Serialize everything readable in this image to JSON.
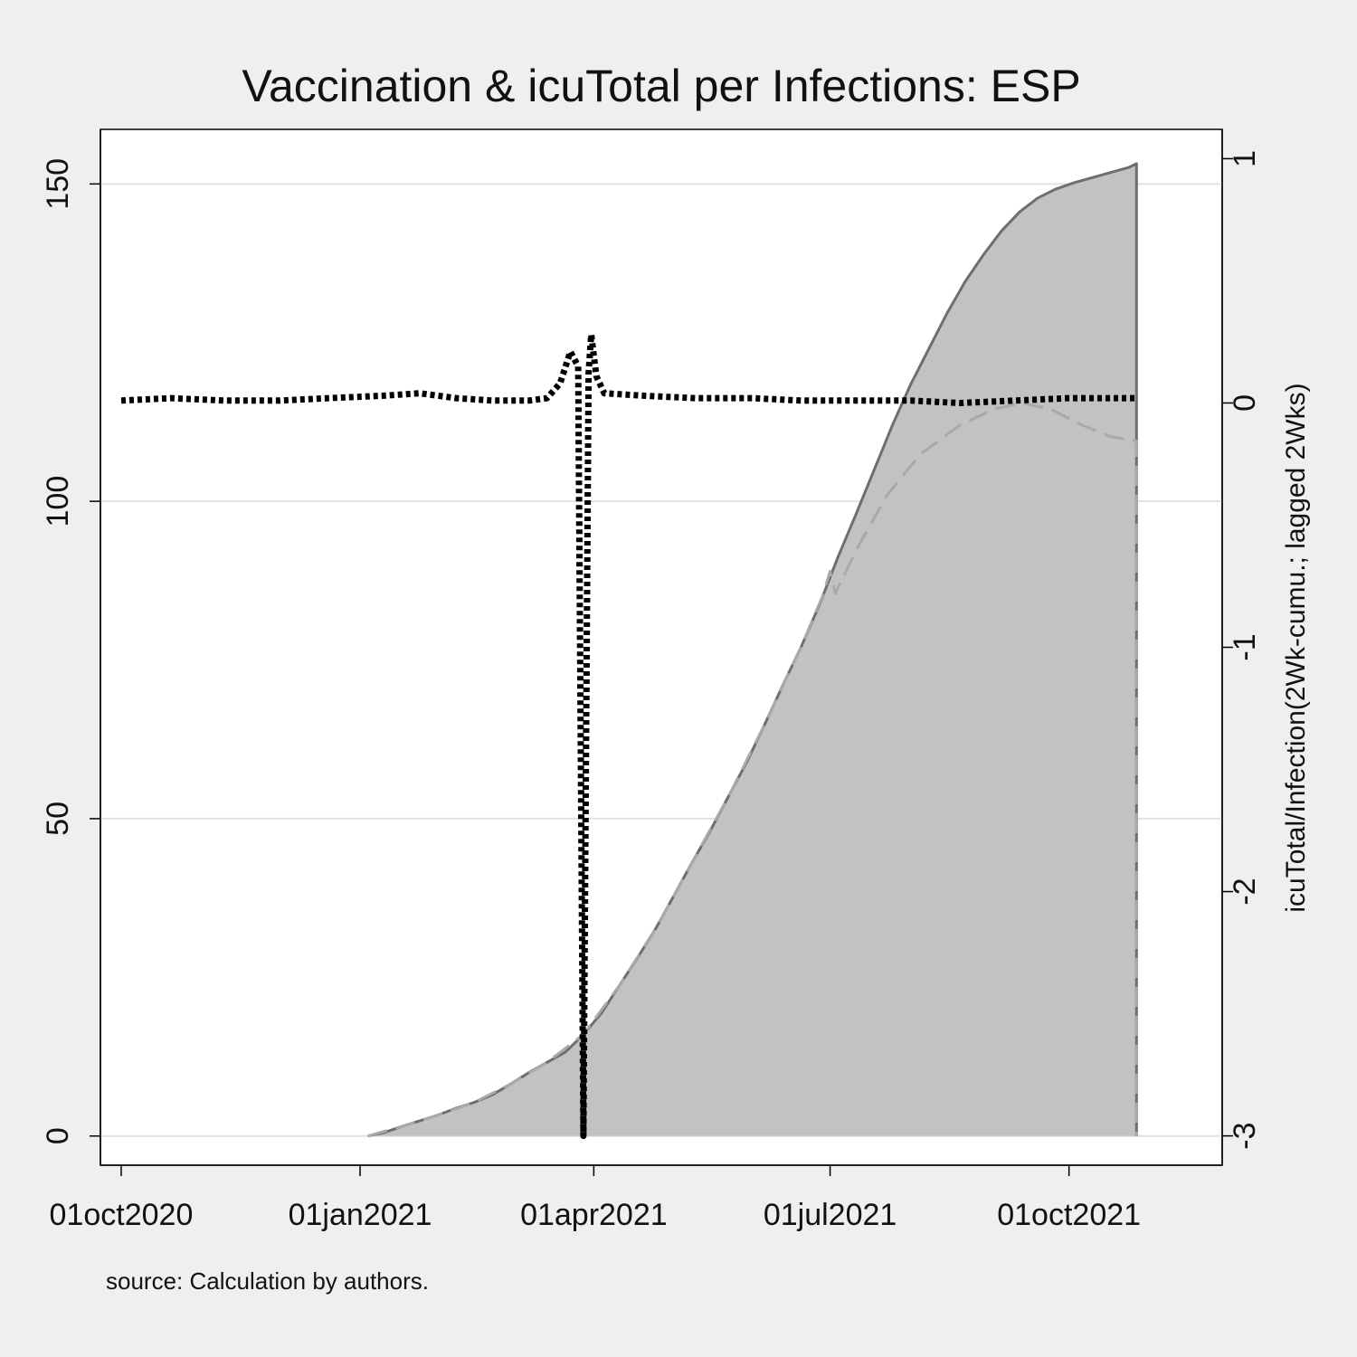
{
  "chart_data": {
    "type": "area",
    "title": "Vaccination & icuTotal per Infections: ESP",
    "note": "source: Calculation by authors.",
    "xlabel": "",
    "ylabel_left": "",
    "ylabel_right": "icuTotal/Infection(2Wk-cumu.; lagged 2Wks)",
    "x_ticks": [
      "01oct2020",
      "01jan2021",
      "01apr2021",
      "01jul2021",
      "01oct2021"
    ],
    "xlim": [
      "2020-09-23",
      "2021-11-29"
    ],
    "y_left_ticks": [
      0,
      50,
      100,
      150
    ],
    "ylim_left": [
      -4.6,
      158.6
    ],
    "y_right_ticks": [
      -3,
      -2,
      -1,
      0,
      1
    ],
    "ylim_right": [
      -3.12,
      1.12
    ],
    "grid": "horizontal, left axis",
    "legend": "none",
    "colors": {
      "area_fill": "#c2c2c2",
      "area_line": "#6e6e6e",
      "dashed": "#a9a9a9",
      "dotted": "#000000",
      "plot_bg": "#ffffff",
      "page_bg": "#efefef"
    },
    "series": [
      {
        "axis": "left",
        "style": "area",
        "points": [
          [
            "2021-01-04",
            0
          ],
          [
            "2021-01-10",
            0.5
          ],
          [
            "2021-01-17",
            1.5
          ],
          [
            "2021-01-24",
            2.4
          ],
          [
            "2021-01-31",
            3.3
          ],
          [
            "2021-02-07",
            4.4
          ],
          [
            "2021-02-14",
            5.3
          ],
          [
            "2021-02-21",
            6.5
          ],
          [
            "2021-02-28",
            8.2
          ],
          [
            "2021-03-07",
            10.0
          ],
          [
            "2021-03-14",
            11.6
          ],
          [
            "2021-03-21",
            13.2
          ],
          [
            "2021-03-28",
            16.0
          ],
          [
            "2021-04-04",
            19.4
          ],
          [
            "2021-04-11",
            23.8
          ],
          [
            "2021-04-18",
            28.2
          ],
          [
            "2021-04-25",
            32.8
          ],
          [
            "2021-05-02",
            38.0
          ],
          [
            "2021-05-09",
            43.2
          ],
          [
            "2021-05-16",
            48.2
          ],
          [
            "2021-05-23",
            53.6
          ],
          [
            "2021-05-30",
            59.0
          ],
          [
            "2021-06-06",
            65.0
          ],
          [
            "2021-06-13",
            71.2
          ],
          [
            "2021-06-20",
            77.2
          ],
          [
            "2021-06-27",
            83.8
          ],
          [
            "2021-07-04",
            91.2
          ],
          [
            "2021-07-11",
            98.0
          ],
          [
            "2021-07-18",
            105.0
          ],
          [
            "2021-07-25",
            112.0
          ],
          [
            "2021-08-01",
            118.4
          ],
          [
            "2021-08-08",
            124.0
          ],
          [
            "2021-08-15",
            129.6
          ],
          [
            "2021-08-22",
            134.6
          ],
          [
            "2021-08-29",
            138.8
          ],
          [
            "2021-09-05",
            142.6
          ],
          [
            "2021-09-12",
            145.6
          ],
          [
            "2021-09-19",
            147.8
          ],
          [
            "2021-09-26",
            149.2
          ],
          [
            "2021-10-03",
            150.2
          ],
          [
            "2021-10-10",
            151.0
          ],
          [
            "2021-10-17",
            151.8
          ],
          [
            "2021-10-24",
            152.6
          ],
          [
            "2021-10-27",
            153.2
          ],
          [
            "2021-10-27",
            0
          ]
        ]
      },
      {
        "axis": "left",
        "style": "dashed",
        "points": [
          [
            "2021-01-04",
            0
          ],
          [
            "2021-01-17",
            1.5
          ],
          [
            "2021-01-31",
            3.3
          ],
          [
            "2021-02-14",
            5.3
          ],
          [
            "2021-02-28",
            8.2
          ],
          [
            "2021-03-14",
            11.6
          ],
          [
            "2021-03-28",
            16.0
          ],
          [
            "2021-04-11",
            23.8
          ],
          [
            "2021-04-25",
            32.8
          ],
          [
            "2021-05-09",
            43.2
          ],
          [
            "2021-05-23",
            53.6
          ],
          [
            "2021-06-06",
            65.0
          ],
          [
            "2021-06-20",
            77.2
          ],
          [
            "2021-06-28",
            85.0
          ],
          [
            "2021-07-01",
            89.0
          ],
          [
            "2021-07-03",
            85.5
          ],
          [
            "2021-07-12",
            93.0
          ],
          [
            "2021-07-23",
            101.0
          ],
          [
            "2021-08-05",
            107.5
          ],
          [
            "2021-08-20",
            112.0
          ],
          [
            "2021-09-02",
            114.5
          ],
          [
            "2021-09-13",
            115.5
          ],
          [
            "2021-09-24",
            114.5
          ],
          [
            "2021-10-06",
            112.0
          ],
          [
            "2021-10-17",
            110.2
          ],
          [
            "2021-10-27",
            109.5
          ],
          [
            "2021-10-27",
            0
          ]
        ]
      },
      {
        "axis": "right",
        "style": "dotted",
        "points": [
          [
            "2020-10-01",
            0.01
          ],
          [
            "2020-10-20",
            0.02
          ],
          [
            "2020-11-10",
            0.01
          ],
          [
            "2020-12-01",
            0.01
          ],
          [
            "2020-12-20",
            0.02
          ],
          [
            "2021-01-10",
            0.03
          ],
          [
            "2021-01-24",
            0.04
          ],
          [
            "2021-02-07",
            0.02
          ],
          [
            "2021-02-21",
            0.01
          ],
          [
            "2021-03-07",
            0.01
          ],
          [
            "2021-03-14",
            0.02
          ],
          [
            "2021-03-19",
            0.08
          ],
          [
            "2021-03-23",
            0.21
          ],
          [
            "2021-03-26",
            0.15
          ],
          [
            "2021-03-28",
            -3.0
          ],
          [
            "2021-03-30",
            0.12
          ],
          [
            "2021-03-31",
            0.28
          ],
          [
            "2021-04-02",
            0.11
          ],
          [
            "2021-04-05",
            0.04
          ],
          [
            "2021-04-20",
            0.03
          ],
          [
            "2021-05-10",
            0.02
          ],
          [
            "2021-06-01",
            0.02
          ],
          [
            "2021-06-20",
            0.01
          ],
          [
            "2021-07-10",
            0.01
          ],
          [
            "2021-08-01",
            0.01
          ],
          [
            "2021-08-20",
            0.0
          ],
          [
            "2021-09-10",
            0.01
          ],
          [
            "2021-10-01",
            0.02
          ],
          [
            "2021-10-27",
            0.02
          ]
        ]
      }
    ]
  }
}
